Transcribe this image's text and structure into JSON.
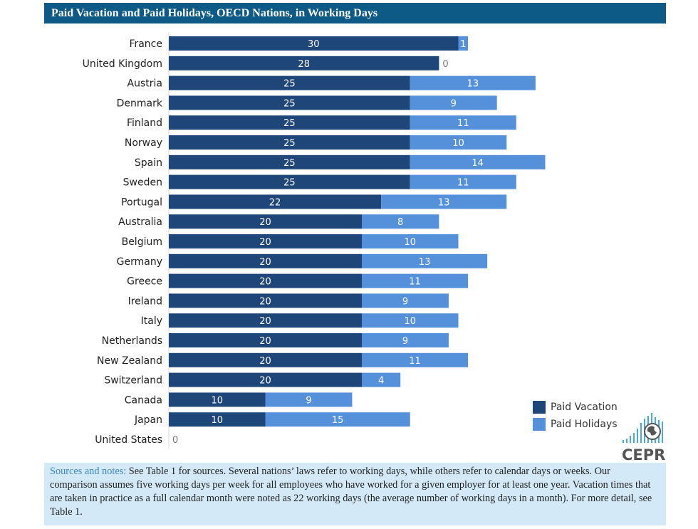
{
  "chart_data": {
    "type": "bar",
    "stacked": true,
    "orientation": "horizontal",
    "title": "Paid Vacation and Paid Holidays, OECD Nations, in Working Days",
    "categories": [
      "France",
      "United Kingdom",
      "Austria",
      "Denmark",
      "Finland",
      "Norway",
      "Spain",
      "Sweden",
      "Portugal",
      "Australia",
      "Belgium",
      "Germany",
      "Greece",
      "Ireland",
      "Italy",
      "Netherlands",
      "New Zealand",
      "Switzerland",
      "Canada",
      "Japan",
      "United States"
    ],
    "series": [
      {
        "name": "Paid Vacation",
        "color": "#1f4678",
        "values": [
          30,
          28,
          25,
          25,
          25,
          25,
          25,
          25,
          22,
          20,
          20,
          20,
          20,
          20,
          20,
          20,
          20,
          20,
          10,
          10,
          0
        ]
      },
      {
        "name": "Paid Holidays",
        "color": "#5591db",
        "values": [
          1,
          0,
          13,
          9,
          11,
          10,
          14,
          11,
          13,
          8,
          10,
          13,
          11,
          9,
          10,
          9,
          11,
          4,
          9,
          15,
          0
        ]
      }
    ],
    "legend": "bottom-right"
  },
  "notes": {
    "lead": "Sources and notes:",
    "text": " See Table 1 for sources. Several nations’ laws refer to working days, while others refer to calendar days or weeks. Our comparison assumes five working days per week for all employees who have worked for a given employer for at least one year. Vacation times that are taken in practice as a full calendar month were noted as 22 working days (the average number of working days in a month). For more detail, see Table 1."
  },
  "logo": "CEPR"
}
